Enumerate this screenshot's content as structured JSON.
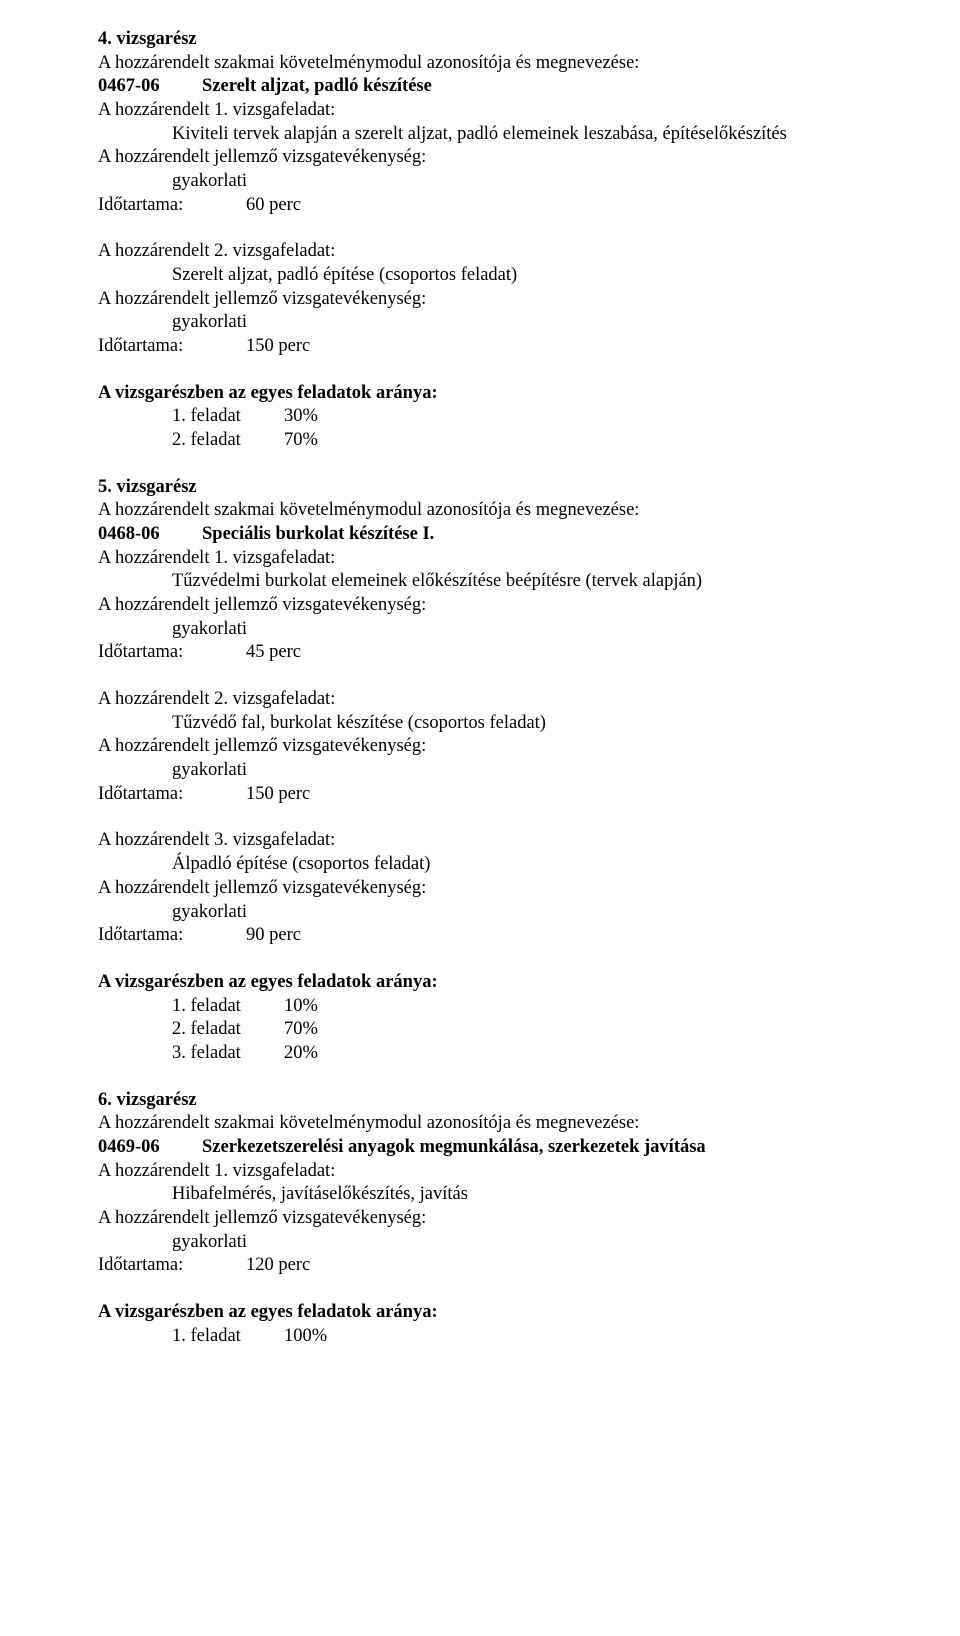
{
  "sections": [
    {
      "title": "4. vizsgarész",
      "modul_intro": "A hozzárendelt szakmai követelménymodul azonosítója és megnevezése:",
      "modul_code": "0467-06",
      "modul_name": "Szerelt aljzat, padló készítése",
      "feladatok": [
        {
          "header": "A hozzárendelt 1. vizsgafeladat:",
          "desc": "Kiviteli tervek alapján a szerelt aljzat, padló elemeinek leszabása, építéselőkészítés",
          "activity_header": "A hozzárendelt jellemző vizsgatevékenység:",
          "activity": "gyakorlati",
          "duration_label": "Időtartama:",
          "duration": "60 perc"
        },
        {
          "header": "A hozzárendelt 2. vizsgafeladat:",
          "desc": "Szerelt aljzat, padló építése (csoportos feladat)",
          "activity_header": "A hozzárendelt jellemző vizsgatevékenység:",
          "activity": "gyakorlati",
          "duration_label": "Időtartama:",
          "duration": "150 perc"
        }
      ],
      "ratio_header": "A vizsgarészben az egyes feladatok aránya:",
      "ratios": [
        {
          "label": "1. feladat",
          "value": "30%"
        },
        {
          "label": "2. feladat",
          "value": "70%"
        }
      ]
    },
    {
      "title": "5. vizsgarész",
      "modul_intro": "A hozzárendelt szakmai követelménymodul azonosítója és megnevezése:",
      "modul_code": "0468-06",
      "modul_name": "Speciális burkolat készítése I.",
      "feladatok": [
        {
          "header": "A hozzárendelt 1. vizsgafeladat:",
          "desc": "Tűzvédelmi burkolat elemeinek előkészítése beépítésre (tervek alapján)",
          "activity_header": "A hozzárendelt jellemző vizsgatevékenység:",
          "activity": "gyakorlati",
          "duration_label": "Időtartama:",
          "duration": "45 perc"
        },
        {
          "header": "A hozzárendelt 2. vizsgafeladat:",
          "desc": "Tűzvédő fal, burkolat készítése (csoportos feladat)",
          "activity_header": "A hozzárendelt jellemző vizsgatevékenység:",
          "activity": "gyakorlati",
          "duration_label": "Időtartama:",
          "duration": "150 perc"
        },
        {
          "header": "A hozzárendelt 3. vizsgafeladat:",
          "desc": "Álpadló építése (csoportos feladat)",
          "activity_header": "A hozzárendelt jellemző vizsgatevékenység:",
          "activity": "gyakorlati",
          "duration_label": "Időtartama:",
          "duration": "90 perc"
        }
      ],
      "ratio_header": "A vizsgarészben az egyes feladatok aránya:",
      "ratios": [
        {
          "label": "1. feladat",
          "value": "10%"
        },
        {
          "label": "2. feladat",
          "value": "70%"
        },
        {
          "label": "3. feladat",
          "value": "20%"
        }
      ]
    },
    {
      "title": "6. vizsgarész",
      "modul_intro": "A hozzárendelt szakmai követelménymodul azonosítója és megnevezése:",
      "modul_code": "0469-06",
      "modul_name": "Szerkezetszerelési anyagok megmunkálása, szerkezetek javítása",
      "feladatok": [
        {
          "header": "A hozzárendelt 1. vizsgafeladat:",
          "desc": "Hibafelmérés, javításelőkészítés, javítás",
          "activity_header": "A hozzárendelt jellemző vizsgatevékenység:",
          "activity": "gyakorlati",
          "duration_label": "Időtartama:",
          "duration": "120 perc"
        }
      ],
      "ratio_header": "A vizsgarészben az egyes feladatok aránya:",
      "ratios": [
        {
          "label": "1. feladat",
          "value": "100%"
        }
      ]
    }
  ]
}
